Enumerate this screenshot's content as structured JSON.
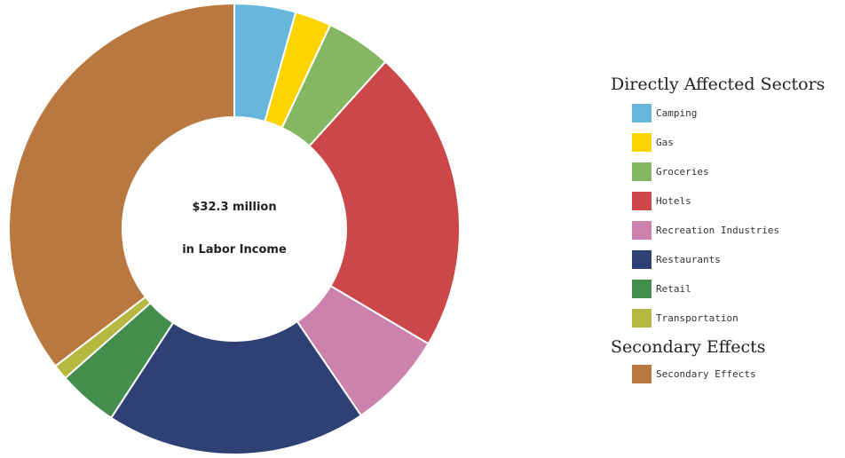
{
  "chart_data": {
    "type": "pie",
    "variant": "donut",
    "center_text": [
      "$32.3 million",
      "in Labor Income"
    ],
    "groups": [
      {
        "heading": "Directly Affected Sectors",
        "items": [
          {
            "label": "Camping",
            "value": 4.4,
            "color": "#67b7dc"
          },
          {
            "label": "Gas",
            "value": 2.6,
            "color": "#fdd400"
          },
          {
            "label": "Groceries",
            "value": 4.7,
            "color": "#84b761"
          },
          {
            "label": "Hotels",
            "value": 21.8,
            "color": "#cc4748"
          },
          {
            "label": "Recreation Industries",
            "value": 7.0,
            "color": "#cd82ad"
          },
          {
            "label": "Restaurants",
            "value": 18.7,
            "color": "#2f4074"
          },
          {
            "label": "Retail",
            "value": 4.3,
            "color": "#448e4d"
          },
          {
            "label": "Transportation",
            "value": 1.1,
            "color": "#b7b83f"
          }
        ]
      },
      {
        "heading": "Secondary Effects",
        "items": [
          {
            "label": "Secondary Effects",
            "value": 35.4,
            "color": "#b9783f"
          }
        ]
      }
    ]
  }
}
